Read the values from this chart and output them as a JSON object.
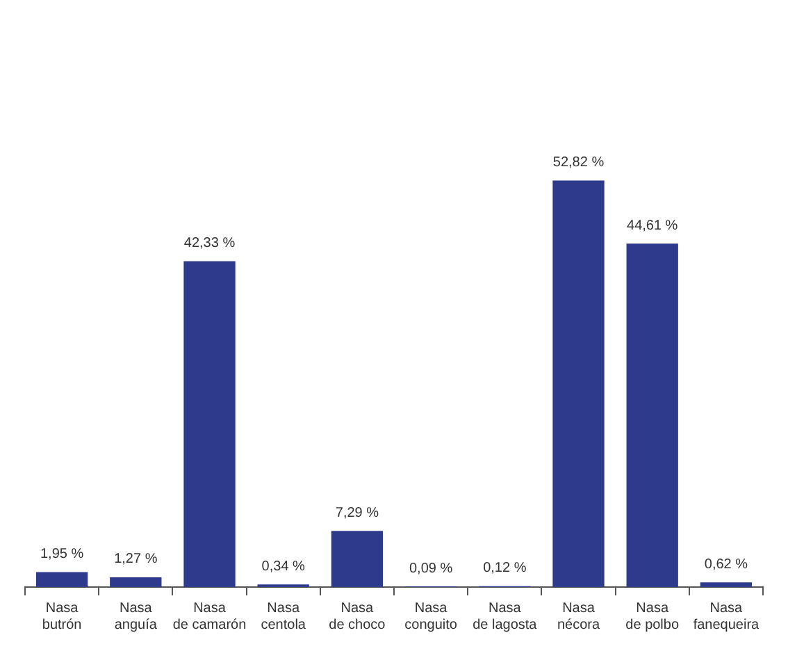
{
  "chart_data": {
    "type": "bar",
    "categories": [
      "Nasa\nbutrón",
      "Nasa\nanguía",
      "Nasa\nde camarón",
      "Nasa\ncentola",
      "Nasa\nde choco",
      "Nasa\nconguito",
      "Nasa\nde lagosta",
      "Nasa\nnécora",
      "Nasa\nde polbo",
      "Nasa\nfanequeira"
    ],
    "values": [
      1.95,
      1.27,
      42.33,
      0.34,
      7.29,
      0.09,
      0.12,
      52.82,
      44.61,
      0.62
    ],
    "value_labels": [
      "1,95 %",
      "1,27 %",
      "42,33 %",
      "0,34 %",
      "7,29 %",
      "0,09 %",
      "0,12 %",
      "52,82 %",
      "44,61 %",
      "0,62 %"
    ],
    "color": "#2e3a8c",
    "grid": false,
    "legend": false
  }
}
